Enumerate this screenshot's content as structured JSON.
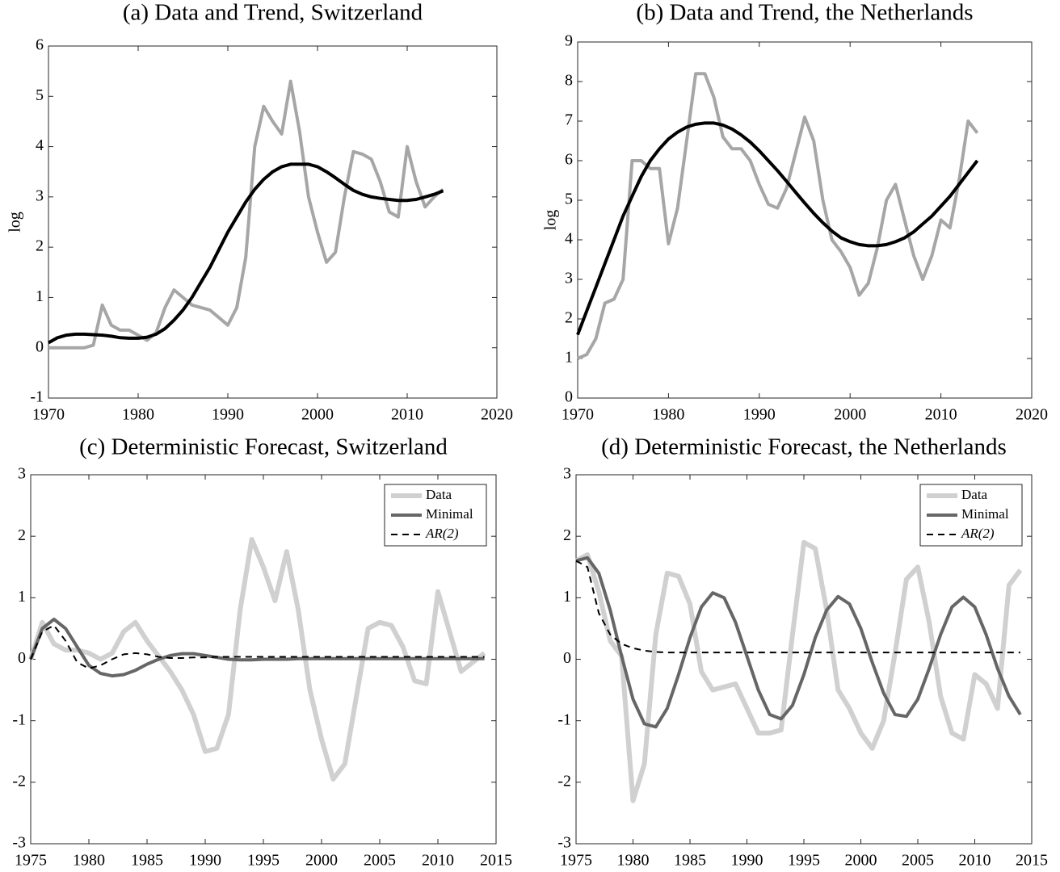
{
  "chart_data": [
    {
      "type": "line",
      "title": "(a) Data and Trend, Switzerland",
      "ylabel": "log",
      "x": [
        1970,
        1971,
        1972,
        1973,
        1974,
        1975,
        1976,
        1977,
        1978,
        1979,
        1980,
        1981,
        1982,
        1983,
        1984,
        1985,
        1986,
        1987,
        1988,
        1989,
        1990,
        1991,
        1992,
        1993,
        1994,
        1995,
        1996,
        1997,
        1998,
        1999,
        2000,
        2001,
        2002,
        2003,
        2004,
        2005,
        2006,
        2007,
        2008,
        2009,
        2010,
        2011,
        2012,
        2013,
        2014
      ],
      "series": [
        {
          "color": "#a6a6a6",
          "values": [
            0,
            0,
            0,
            0,
            0,
            0.05,
            0.85,
            0.45,
            0.35,
            0.35,
            0.25,
            0.15,
            0.3,
            0.8,
            1.15,
            1.0,
            0.85,
            0.8,
            0.75,
            0.6,
            0.45,
            0.8,
            1.8,
            4.0,
            4.8,
            4.5,
            4.25,
            5.3,
            4.3,
            3.0,
            2.3,
            1.7,
            1.9,
            3.0,
            3.9,
            3.85,
            3.75,
            3.3,
            2.7,
            2.6,
            4.0,
            3.3,
            2.8,
            3.0,
            3.15
          ]
        },
        {
          "color": "#000000",
          "values": [
            0.1,
            0.2,
            0.25,
            0.27,
            0.27,
            0.26,
            0.25,
            0.23,
            0.2,
            0.19,
            0.19,
            0.21,
            0.27,
            0.38,
            0.55,
            0.75,
            1.0,
            1.3,
            1.6,
            1.95,
            2.3,
            2.6,
            2.9,
            3.15,
            3.35,
            3.5,
            3.6,
            3.65,
            3.65,
            3.65,
            3.6,
            3.5,
            3.38,
            3.25,
            3.13,
            3.05,
            3.0,
            2.97,
            2.95,
            2.93,
            2.93,
            2.95,
            3.0,
            3.05,
            3.12
          ]
        }
      ],
      "xlim": [
        1970,
        2020
      ],
      "xticks": [
        1970,
        1980,
        1990,
        2000,
        2010,
        2020
      ],
      "ylim": [
        -1,
        6
      ],
      "yticks": [
        -1,
        0,
        1,
        2,
        3,
        4,
        5,
        6
      ]
    },
    {
      "type": "line",
      "title": "(b) Data and Trend, the Netherlands",
      "ylabel": "log",
      "x": [
        1970,
        1971,
        1972,
        1973,
        1974,
        1975,
        1976,
        1977,
        1978,
        1979,
        1980,
        1981,
        1982,
        1983,
        1984,
        1985,
        1986,
        1987,
        1988,
        1989,
        1990,
        1991,
        1992,
        1993,
        1994,
        1995,
        1996,
        1997,
        1998,
        1999,
        2000,
        2001,
        2002,
        2003,
        2004,
        2005,
        2006,
        2007,
        2008,
        2009,
        2010,
        2011,
        2012,
        2013,
        2014
      ],
      "series": [
        {
          "color": "#a6a6a6",
          "values": [
            1.0,
            1.1,
            1.5,
            2.4,
            2.5,
            3.0,
            6.0,
            6.0,
            5.8,
            5.8,
            3.9,
            4.8,
            6.5,
            8.2,
            8.2,
            7.6,
            6.6,
            6.3,
            6.3,
            6.0,
            5.4,
            4.9,
            4.8,
            5.3,
            6.2,
            7.1,
            6.5,
            5.0,
            4.0,
            3.7,
            3.3,
            2.6,
            2.9,
            3.8,
            5.0,
            5.4,
            4.5,
            3.6,
            3.0,
            3.6,
            4.5,
            4.3,
            5.5,
            7.0,
            6.7
          ]
        },
        {
          "color": "#000000",
          "values": [
            1.6,
            2.2,
            2.8,
            3.4,
            4.0,
            4.6,
            5.1,
            5.6,
            6.0,
            6.3,
            6.55,
            6.72,
            6.85,
            6.92,
            6.95,
            6.95,
            6.9,
            6.8,
            6.65,
            6.47,
            6.25,
            6.0,
            5.75,
            5.48,
            5.2,
            4.93,
            4.67,
            4.43,
            4.22,
            4.05,
            3.95,
            3.88,
            3.85,
            3.85,
            3.88,
            3.95,
            4.05,
            4.2,
            4.4,
            4.6,
            4.85,
            5.1,
            5.4,
            5.7,
            6.0
          ]
        }
      ],
      "xlim": [
        1970,
        2020
      ],
      "xticks": [
        1970,
        1980,
        1990,
        2000,
        2010,
        2020
      ],
      "ylim": [
        0,
        9
      ],
      "yticks": [
        0,
        1,
        2,
        3,
        4,
        5,
        6,
        7,
        8,
        9
      ]
    },
    {
      "type": "line",
      "title": "(c) Deterministic Forecast, Switzerland",
      "legend": "upper right",
      "x": [
        1975,
        1976,
        1977,
        1978,
        1979,
        1980,
        1981,
        1982,
        1983,
        1984,
        1985,
        1986,
        1987,
        1988,
        1989,
        1990,
        1991,
        1992,
        1993,
        1994,
        1995,
        1996,
        1997,
        1998,
        1999,
        2000,
        2001,
        2002,
        2003,
        2004,
        2005,
        2006,
        2007,
        2008,
        2009,
        2010,
        2011,
        2012,
        2013,
        2014
      ],
      "series": [
        {
          "name": "Data",
          "color": "#d0d0d0",
          "values": [
            0,
            0.6,
            0.25,
            0.15,
            0.15,
            0.1,
            0.0,
            0.1,
            0.45,
            0.6,
            0.3,
            0.05,
            -0.2,
            -0.5,
            -0.9,
            -1.5,
            -1.45,
            -0.9,
            0.8,
            1.95,
            1.5,
            0.95,
            1.75,
            0.8,
            -0.5,
            -1.3,
            -1.95,
            -1.7,
            -0.6,
            0.5,
            0.6,
            0.55,
            0.2,
            -0.35,
            -0.4,
            1.1,
            0.45,
            -0.2,
            -0.05,
            0.1
          ]
        },
        {
          "name": "Minimal",
          "color": "#666666",
          "values": [
            0,
            0.5,
            0.65,
            0.5,
            0.2,
            -0.1,
            -0.23,
            -0.27,
            -0.25,
            -0.18,
            -0.08,
            0.0,
            0.06,
            0.09,
            0.09,
            0.06,
            0.03,
            0.0,
            -0.01,
            -0.01,
            0,
            0,
            0,
            0.01,
            0.01,
            0.01,
            0.01,
            0.01,
            0.01,
            0.01,
            0.01,
            0.01,
            0.01,
            0.01,
            0.01,
            0.01,
            0.01,
            0.01,
            0.01,
            0.01
          ]
        },
        {
          "name": "AR(2)",
          "color": "#000000",
          "dashed": true,
          "values": [
            0,
            0.45,
            0.55,
            0.3,
            -0.05,
            -0.15,
            -0.1,
            0.0,
            0.08,
            0.1,
            0.08,
            0.04,
            0.02,
            0.02,
            0.03,
            0.03,
            0.04,
            0.04,
            0.04,
            0.04,
            0.04,
            0.04,
            0.04,
            0.04,
            0.04,
            0.04,
            0.04,
            0.04,
            0.04,
            0.04,
            0.04,
            0.04,
            0.04,
            0.04,
            0.04,
            0.04,
            0.04,
            0.04,
            0.04,
            0.04
          ]
        }
      ],
      "xlim": [
        1975,
        2015
      ],
      "xticks": [
        1975,
        1980,
        1985,
        1990,
        1995,
        2000,
        2005,
        2010,
        2015
      ],
      "ylim": [
        -3,
        3
      ],
      "yticks": [
        -3,
        -2,
        -1,
        0,
        1,
        2,
        3
      ]
    },
    {
      "type": "line",
      "title": "(d) Deterministic Forecast, the Netherlands",
      "legend": "upper right",
      "x": [
        1975,
        1976,
        1977,
        1978,
        1979,
        1980,
        1981,
        1982,
        1983,
        1984,
        1985,
        1986,
        1987,
        1988,
        1989,
        1990,
        1991,
        1992,
        1993,
        1994,
        1995,
        1996,
        1997,
        1998,
        1999,
        2000,
        2001,
        2002,
        2003,
        2004,
        2005,
        2006,
        2007,
        2008,
        2009,
        2010,
        2011,
        2012,
        2013,
        2014
      ],
      "series": [
        {
          "name": "Data",
          "color": "#d0d0d0",
          "values": [
            1.6,
            1.7,
            1.1,
            0.3,
            0.05,
            -2.3,
            -1.7,
            0.4,
            1.4,
            1.35,
            0.9,
            -0.2,
            -0.5,
            -0.45,
            -0.4,
            -0.8,
            -1.2,
            -1.2,
            -1.15,
            0.4,
            1.9,
            1.8,
            0.8,
            -0.5,
            -0.8,
            -1.2,
            -1.45,
            -1.0,
            0.1,
            1.3,
            1.5,
            0.6,
            -0.6,
            -1.2,
            -1.3,
            -0.25,
            -0.4,
            -0.8,
            1.2,
            1.45
          ]
        },
        {
          "name": "Minimal",
          "color": "#666666",
          "values": [
            1.6,
            1.65,
            1.4,
            0.8,
            0.05,
            -0.65,
            -1.05,
            -1.1,
            -0.8,
            -0.25,
            0.35,
            0.85,
            1.08,
            1.0,
            0.6,
            0.05,
            -0.5,
            -0.9,
            -0.97,
            -0.75,
            -0.25,
            0.35,
            0.8,
            1.02,
            0.9,
            0.5,
            -0.05,
            -0.55,
            -0.9,
            -0.93,
            -0.65,
            -0.15,
            0.4,
            0.85,
            1.01,
            0.85,
            0.4,
            -0.15,
            -0.6,
            -0.9
          ]
        },
        {
          "name": "AR(2)",
          "color": "#000000",
          "dashed": true,
          "values": [
            1.6,
            1.5,
            0.75,
            0.4,
            0.25,
            0.18,
            0.14,
            0.12,
            0.11,
            0.11,
            0.11,
            0.11,
            0.11,
            0.11,
            0.11,
            0.11,
            0.11,
            0.11,
            0.11,
            0.11,
            0.11,
            0.11,
            0.11,
            0.11,
            0.11,
            0.11,
            0.11,
            0.11,
            0.11,
            0.11,
            0.11,
            0.11,
            0.11,
            0.11,
            0.11,
            0.11,
            0.11,
            0.11,
            0.11,
            0.11
          ]
        }
      ],
      "xlim": [
        1975,
        2015
      ],
      "xticks": [
        1975,
        1980,
        1985,
        1990,
        1995,
        2000,
        2005,
        2010,
        2015
      ],
      "ylim": [
        -3,
        3
      ],
      "yticks": [
        -3,
        -2,
        -1,
        0,
        1,
        2,
        3
      ]
    }
  ]
}
